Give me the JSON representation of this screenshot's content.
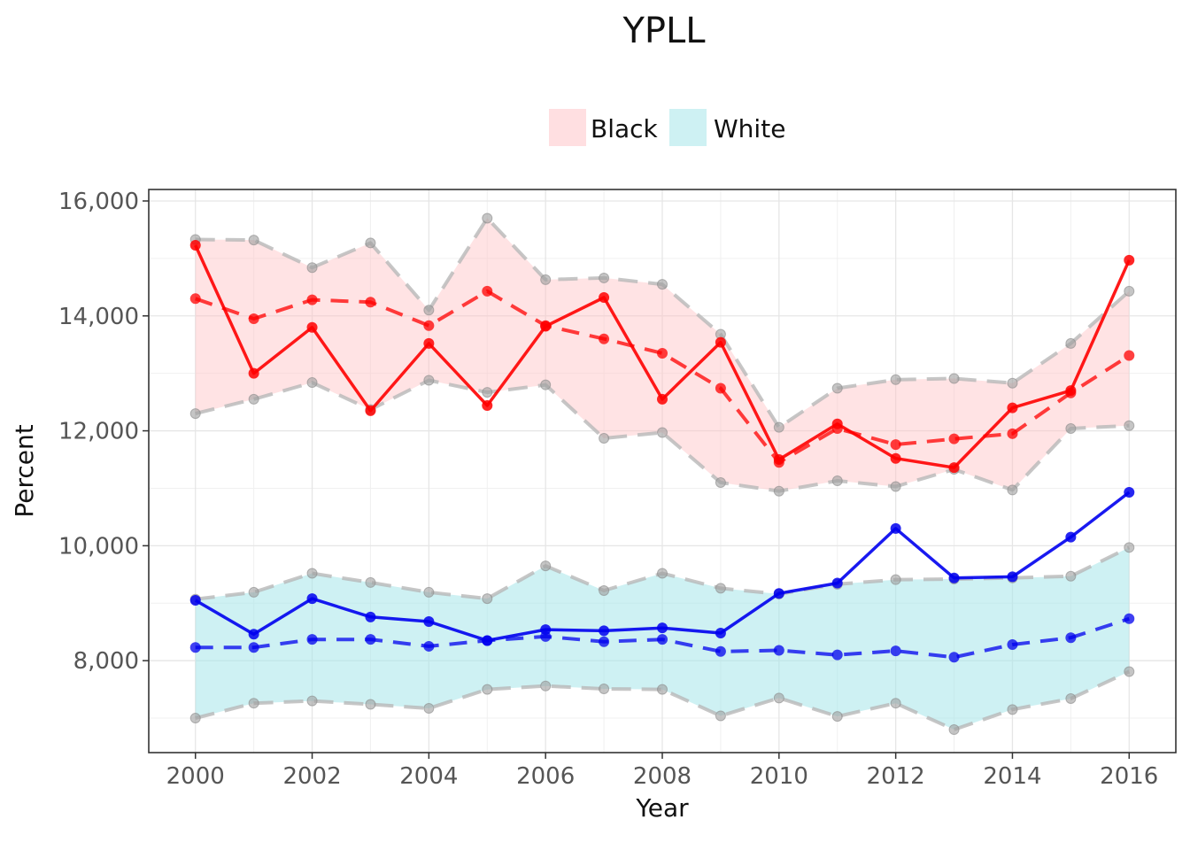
{
  "chart_data": {
    "type": "line",
    "title": "YPLL",
    "xlabel": "Year",
    "ylabel": "Percent",
    "x": [
      2000,
      2001,
      2002,
      2003,
      2004,
      2005,
      2006,
      2007,
      2008,
      2009,
      2010,
      2011,
      2012,
      2013,
      2014,
      2015,
      2016
    ],
    "xlim": [
      1999.2,
      2016.8
    ],
    "ylim": [
      6400,
      16200
    ],
    "xticks": [
      "2000",
      "2002",
      "2004",
      "2006",
      "2008",
      "2010",
      "2012",
      "2014",
      "2016"
    ],
    "yticks": [
      "8,000",
      "10,000",
      "12,000",
      "14,000",
      "16,000"
    ],
    "grid": true,
    "legend_position": "top",
    "legend": [
      "Black",
      "White"
    ],
    "colors": {
      "black_fill": "#ffc0c3",
      "white_fill": "#a5e6e9",
      "black_line": "#ff0000",
      "white_line": "#0000ee",
      "bound_line": "#b8b8b8"
    },
    "groups": [
      {
        "name": "Black",
        "solid": [
          15230,
          13000,
          13800,
          12350,
          13520,
          12440,
          13820,
          14320,
          12550,
          13540,
          11500,
          12120,
          11520,
          11360,
          12400,
          12700,
          14970
        ],
        "dashed": [
          14300,
          13950,
          14280,
          14240,
          13830,
          14430,
          13830,
          13600,
          13350,
          12740,
          11450,
          12040,
          11760,
          11860,
          11950,
          12660,
          13310
        ],
        "upper": [
          15330,
          15320,
          14840,
          15270,
          14100,
          15700,
          14630,
          14660,
          14550,
          13680,
          12060,
          12740,
          12890,
          12910,
          12830,
          13520,
          14430
        ],
        "lower": [
          12300,
          12550,
          12840,
          12370,
          12880,
          12670,
          12800,
          11870,
          11970,
          11100,
          10950,
          11130,
          11030,
          11330,
          10970,
          12040,
          12090
        ]
      },
      {
        "name": "White",
        "solid": [
          9050,
          8460,
          9080,
          8760,
          8680,
          8350,
          8540,
          8520,
          8570,
          8480,
          9170,
          9350,
          10300,
          9440,
          9460,
          10150,
          10930
        ],
        "dashed": [
          8230,
          8230,
          8370,
          8370,
          8250,
          8350,
          8420,
          8330,
          8370,
          8160,
          8180,
          8100,
          8170,
          8060,
          8280,
          8400,
          8730
        ],
        "upper": [
          9070,
          9190,
          9520,
          9360,
          9190,
          9080,
          9650,
          9220,
          9520,
          9260,
          9160,
          9330,
          9410,
          9420,
          9440,
          9470,
          9970
        ],
        "lower": [
          7000,
          7260,
          7300,
          7240,
          7170,
          7500,
          7560,
          7510,
          7500,
          7040,
          7350,
          7030,
          7260,
          6800,
          7150,
          7340,
          7810
        ]
      }
    ]
  }
}
